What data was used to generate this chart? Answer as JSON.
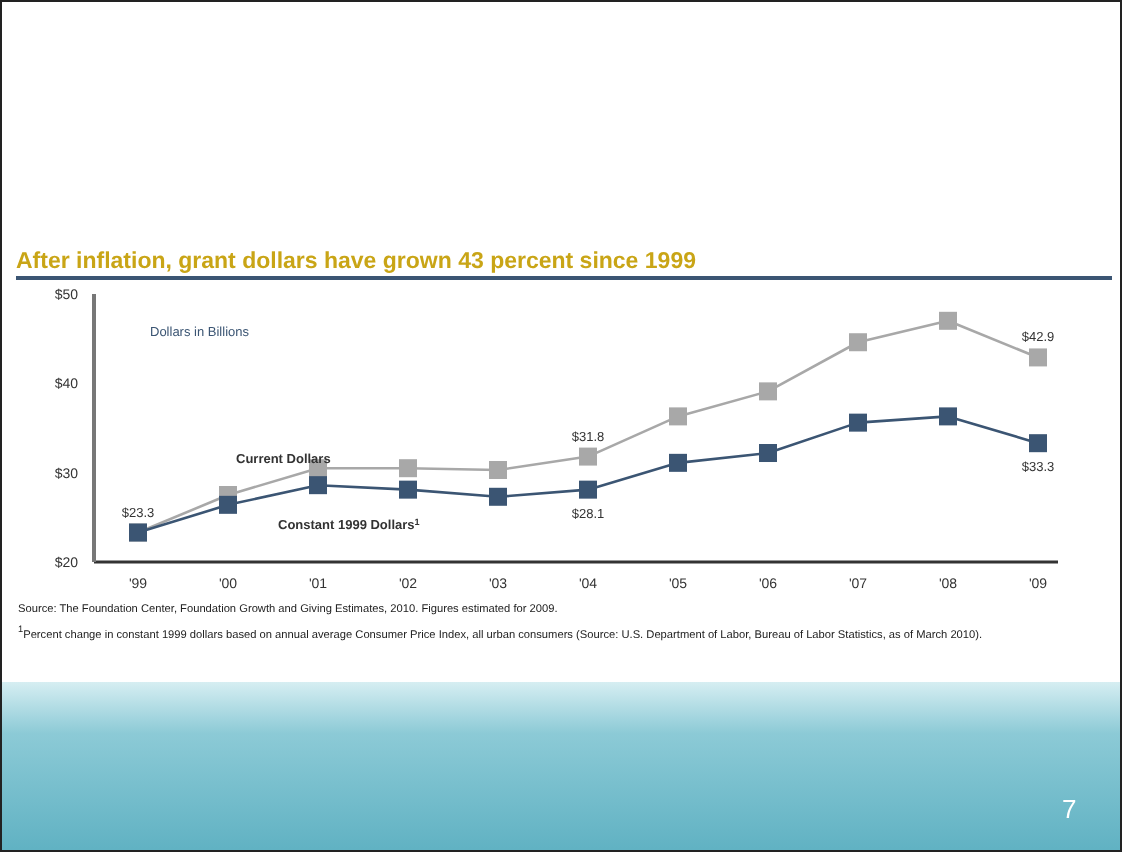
{
  "chart_data": {
    "type": "line",
    "title": "After inflation, grant dollars have grown 43 percent since 1999",
    "ylabel": "Dollars in Billions",
    "categories": [
      "'99",
      "'00",
      "'01",
      "'02",
      "'03",
      "'04",
      "'05",
      "'06",
      "'07",
      "'08",
      "'09"
    ],
    "series": [
      {
        "name": "Current Dollars",
        "color": "#a8a8a8",
        "values": [
          23.3,
          27.5,
          30.5,
          30.5,
          30.3,
          31.8,
          36.3,
          39.1,
          44.6,
          47.0,
          42.9
        ],
        "value_labels": [
          "$23.3",
          null,
          null,
          null,
          null,
          "$31.8",
          null,
          null,
          null,
          null,
          "$42.9"
        ]
      },
      {
        "name": "Constant 1999 Dollars$^{1}$",
        "color": "#3b5573",
        "values": [
          23.3,
          26.4,
          28.6,
          28.1,
          27.3,
          28.1,
          31.1,
          32.2,
          35.6,
          36.3,
          33.3
        ],
        "value_labels": [
          null,
          null,
          null,
          null,
          null,
          "$28.1",
          null,
          null,
          null,
          null,
          "$33.3"
        ]
      }
    ],
    "ylim": [
      20,
      50
    ],
    "yticks": [
      {
        "value": 20,
        "label": "$20"
      },
      {
        "value": 30,
        "label": "$30"
      },
      {
        "value": 40,
        "label": "$40"
      },
      {
        "value": 50,
        "label": "$50"
      }
    ],
    "grid": false,
    "legend": false,
    "marker": "square",
    "line_style": "solid",
    "annotations": [
      "Source: The Foundation Center, Foundation Growth and Giving Estimates, 2010. Figures estimated for 2009.",
      "$^{1}$Percent change in constant 1999 dollars based on annual average Consumer Price Index, all urban consumers (Source: U.S. Department of Labor, Bureau of Labor Statistics, as of March 2010).",
      "7"
    ]
  }
}
